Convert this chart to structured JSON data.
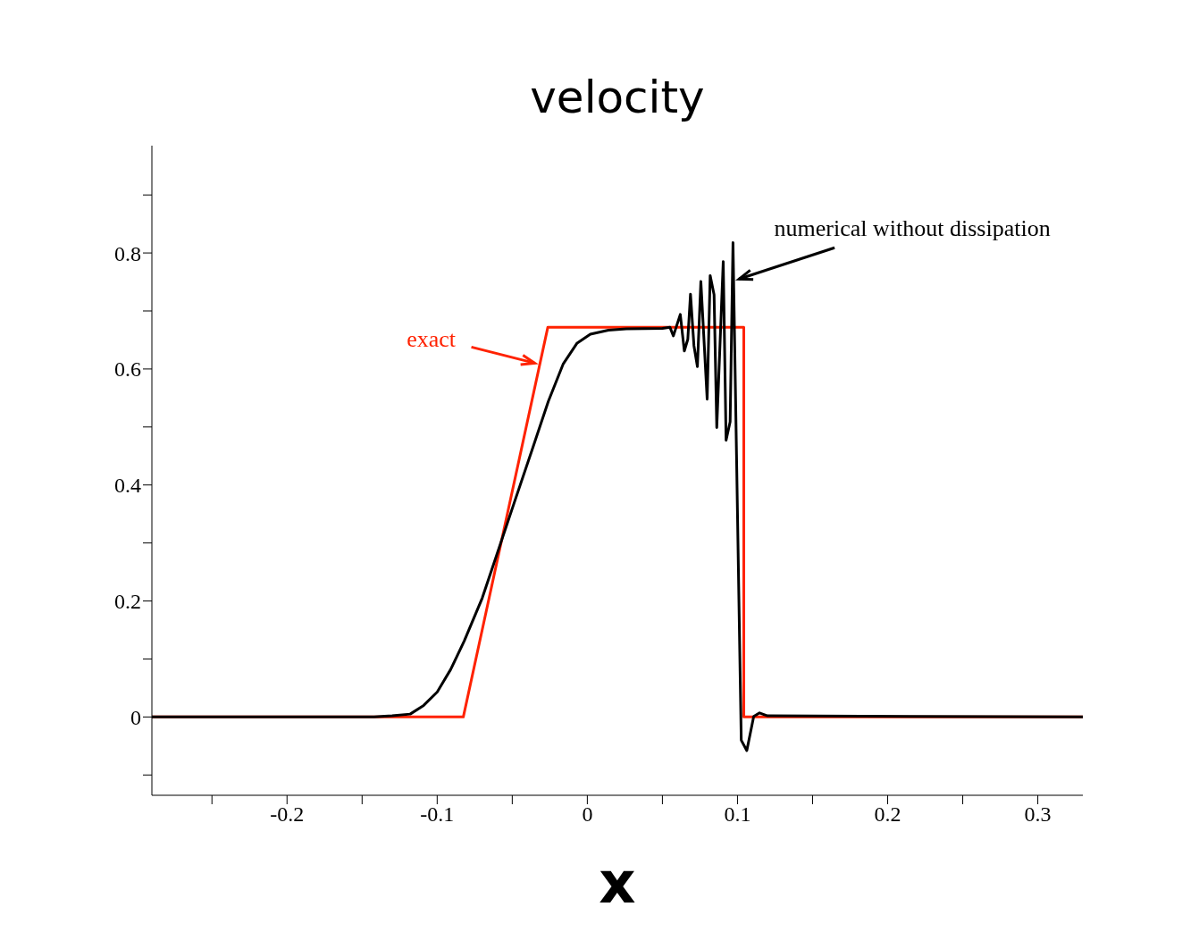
{
  "chart_data": {
    "type": "line",
    "title": "velocity",
    "xlabel": "x",
    "xlim": [
      -0.29,
      0.33
    ],
    "ylim": [
      -0.135,
      0.985
    ],
    "xticks": [
      {
        "value": -0.25,
        "label": null
      },
      {
        "value": -0.2,
        "label": "-0.2"
      },
      {
        "value": -0.15,
        "label": null
      },
      {
        "value": -0.1,
        "label": "-0.1"
      },
      {
        "value": -0.05,
        "label": null
      },
      0,
      {
        "value": 0.05,
        "label": null
      },
      {
        "value": 0.1,
        "label": "0.1"
      },
      {
        "value": 0.15,
        "label": null
      },
      {
        "value": 0.2,
        "label": "0.2"
      },
      {
        "value": 0.25,
        "label": null
      },
      {
        "value": 0.3,
        "label": "0.3"
      }
    ],
    "yticks": [
      {
        "value": -0.1,
        "label": null
      },
      0,
      {
        "value": 0.1,
        "label": null
      },
      {
        "value": 0.2,
        "label": "0.2"
      },
      {
        "value": 0.3,
        "label": null
      },
      {
        "value": 0.4,
        "label": "0.4"
      },
      {
        "value": 0.5,
        "label": null
      },
      {
        "value": 0.6,
        "label": "0.6"
      },
      {
        "value": 0.7,
        "label": null
      },
      {
        "value": 0.8,
        "label": "0.8"
      },
      {
        "value": 0.9,
        "label": null
      }
    ],
    "grid": false,
    "legend": false,
    "marker": "none",
    "line_style": "solid",
    "series": [
      {
        "color": "#ff2200",
        "x": [
          -0.29,
          -0.0826,
          -0.0263,
          0.1042,
          0.1042,
          0.33
        ],
        "values": [
          0,
          0,
          0.672,
          0.672,
          0,
          0
        ]
      },
      {
        "color": "#000000",
        "x": [
          -0.29,
          -0.142,
          -0.13,
          -0.118,
          -0.109,
          -0.1,
          -0.091,
          -0.082,
          -0.07,
          -0.06,
          -0.049,
          -0.037,
          -0.026,
          -0.016,
          -0.007,
          0.002,
          0.014,
          0.026,
          0.05,
          0.055,
          0.0573,
          0.0619,
          0.0646,
          0.0669,
          0.0687,
          0.071,
          0.0733,
          0.0756,
          0.0798,
          0.0818,
          0.0844,
          0.0862,
          0.0905,
          0.0924,
          0.0951,
          0.097,
          0.1025,
          0.1062,
          0.1108,
          0.1147,
          0.12,
          0.33
        ],
        "values": [
          0,
          0,
          0.002,
          0.005,
          0.02,
          0.043,
          0.082,
          0.131,
          0.205,
          0.282,
          0.367,
          0.459,
          0.544,
          0.609,
          0.644,
          0.66,
          0.667,
          0.669,
          0.67,
          0.672,
          0.657,
          0.694,
          0.631,
          0.651,
          0.729,
          0.64,
          0.604,
          0.751,
          0.548,
          0.761,
          0.728,
          0.499,
          0.785,
          0.477,
          0.509,
          0.818,
          -0.04,
          -0.058,
          0.001,
          0.007,
          0.002,
          0
        ]
      }
    ],
    "annotations": [
      {
        "text": "exact",
        "x": -0.035,
        "y": 0.61
      },
      {
        "text": "numerical without dissipation",
        "x": 0.101,
        "y": 0.755
      }
    ]
  }
}
